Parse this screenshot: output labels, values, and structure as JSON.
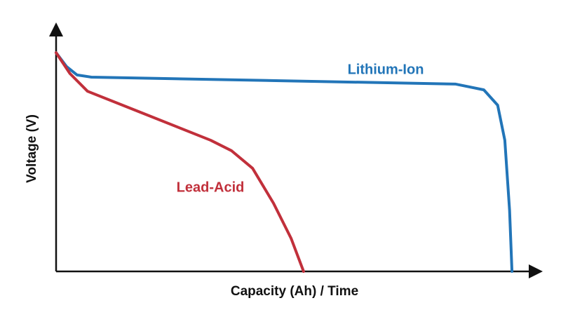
{
  "chart_data": {
    "type": "line",
    "x_label": "Capacity (Ah) / Time",
    "y_label": "Voltage (V)",
    "xlim": [
      0,
      100
    ],
    "ylim": [
      0,
      100
    ],
    "series": [
      {
        "name": "Lithium-Ion",
        "color": "#2275b8",
        "x": [
          0,
          2.2,
          4.4,
          7.4,
          47,
          83.8,
          89.7,
          92.6,
          94.1,
          95.1,
          95.6
        ],
        "values": [
          91.2,
          85.4,
          81.9,
          81.0,
          79.5,
          78.1,
          75.7,
          69.3,
          54.7,
          25.4,
          0
        ]
      },
      {
        "name": "Lead-Acid",
        "color": "#c1303b",
        "x": [
          0,
          2.9,
          6.6,
          17.6,
          32.4,
          36.8,
          41.2,
          45.6,
          49.3,
          51.9
        ],
        "values": [
          91.2,
          82.5,
          75.1,
          66.4,
          54.7,
          50.3,
          43.0,
          28.4,
          13.7,
          0
        ]
      }
    ]
  }
}
